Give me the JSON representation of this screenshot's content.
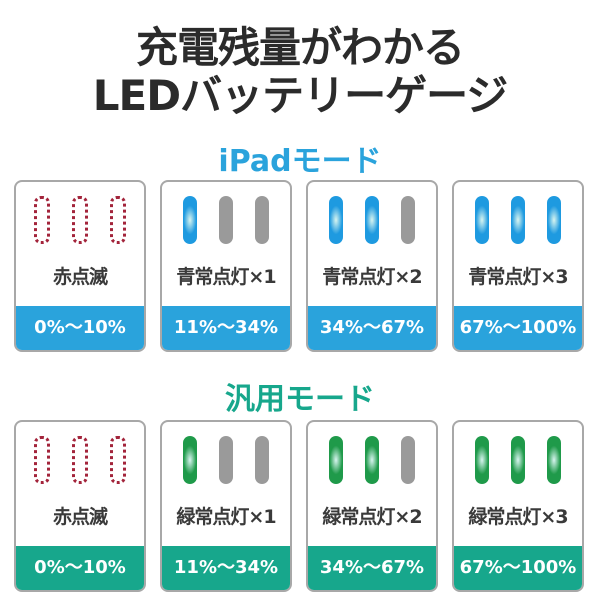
{
  "heading": {
    "line1": "充電残量がわかる",
    "line2": "LEDバッテリーゲージ"
  },
  "sections": [
    {
      "title": "iPadモード",
      "color": "#2aa3dc",
      "led_color": "#1e9ae0",
      "cards": [
        {
          "label": "赤点滅",
          "range": "0%〜10%",
          "leds": [
            "blink",
            "blink",
            "blink"
          ]
        },
        {
          "label": "青常点灯×1",
          "range": "11%〜34%",
          "leds": [
            "on",
            "off",
            "off"
          ]
        },
        {
          "label": "青常点灯×2",
          "range": "34%〜67%",
          "leds": [
            "on",
            "on",
            "off"
          ]
        },
        {
          "label": "青常点灯×3",
          "range": "67%〜100%",
          "leds": [
            "on",
            "on",
            "on"
          ]
        }
      ]
    },
    {
      "title": "汎用モード",
      "color": "#17a78c",
      "led_color": "#1f9a4a",
      "cards": [
        {
          "label": "赤点滅",
          "range": "0%〜10%",
          "leds": [
            "blink",
            "blink",
            "blink"
          ]
        },
        {
          "label": "緑常点灯×1",
          "range": "11%〜34%",
          "leds": [
            "on",
            "off",
            "off"
          ]
        },
        {
          "label": "緑常点灯×2",
          "range": "34%〜67%",
          "leds": [
            "on",
            "on",
            "off"
          ]
        },
        {
          "label": "緑常点灯×3",
          "range": "67%〜100%",
          "leds": [
            "on",
            "on",
            "on"
          ]
        }
      ]
    }
  ]
}
